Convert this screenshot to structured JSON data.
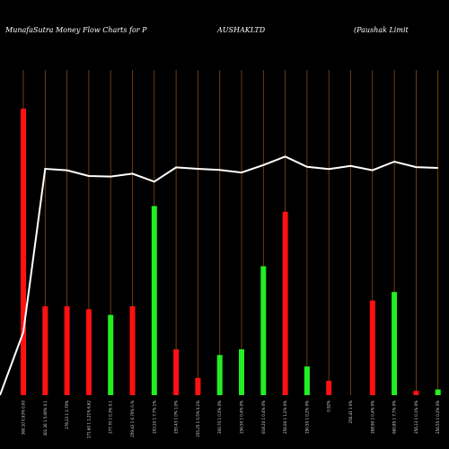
{
  "header": {
    "left_title": "MunafaSutra  Money Flow  Charts for P",
    "center_title": "AUSHAKLTD",
    "right_title": "(Paushak Limit"
  },
  "colors": {
    "background": "#000000",
    "up": "#22ee22",
    "down": "#ff1111",
    "grid": "#8a4a10",
    "line": "#ffffff"
  },
  "chart_data": {
    "type": "bar",
    "title": "MunafaSutra  Money Flow  Charts for PAUSHAKLTD (Paushak Limit",
    "ylim": [
      0,
      100
    ],
    "bars": [
      {
        "value": 100,
        "dir": "down",
        "label": "360.10 0.93% 0.00"
      },
      {
        "value": 31,
        "dir": "down",
        "label": "301.30 1 5.00% 0.1"
      },
      {
        "value": 31,
        "dir": "down",
        "label": "278.23 1 2.70%"
      },
      {
        "value": 30,
        "dir": "down",
        "label": "271.60 1 1.21% 6.62"
      },
      {
        "value": 28,
        "dir": "up",
        "label": "277.70 1 0.3% 0.1"
      },
      {
        "value": 31,
        "dir": "down",
        "label": "259.43 1 6.70% 0.%"
      },
      {
        "value": 66,
        "dir": "up",
        "label": "253.20 1 7.7% 1%"
      },
      {
        "value": 16,
        "dir": "down",
        "label": "255.43 1 0% 1.0%"
      },
      {
        "value": 6,
        "dir": "down",
        "label": "255.25 1 0.5% 0.1%"
      },
      {
        "value": 14,
        "dir": "up",
        "label": "200.70 1 0.5% 0%"
      },
      {
        "value": 16,
        "dir": "up",
        "label": "256.50 1 0.4% 0%"
      },
      {
        "value": 45,
        "dir": "up",
        "label": "618.20 1 0.4% 0%"
      },
      {
        "value": 64,
        "dir": "down",
        "label": "256.00 1 1.2% 0%"
      },
      {
        "value": 10,
        "dir": "up",
        "label": "290.55 1 0.2% 0%"
      },
      {
        "value": 5,
        "dir": "down",
        "label": "0.92%"
      },
      {
        "value": 0,
        "dir": "up",
        "label": "256.43 1 0%"
      },
      {
        "value": 33,
        "dir": "down",
        "label": "268.90 1 0.4% 0%"
      },
      {
        "value": 36,
        "dir": "up",
        "label": "660.85 1 7.7% 0%"
      },
      {
        "value": 1.5,
        "dir": "down",
        "label": "256.13 1 0.1% 0%"
      },
      {
        "value": 2,
        "dir": "up",
        "label": "256.55 1 0.2% 0%"
      }
    ],
    "line": [
      22,
      79,
      78.5,
      76.5,
      76.3,
      77.3,
      74.5,
      79.5,
      79,
      78.6,
      77.7,
      80.3,
      83.3,
      79.7,
      78.9,
      80,
      78.5,
      81.5,
      79.6,
      79.3
    ]
  }
}
